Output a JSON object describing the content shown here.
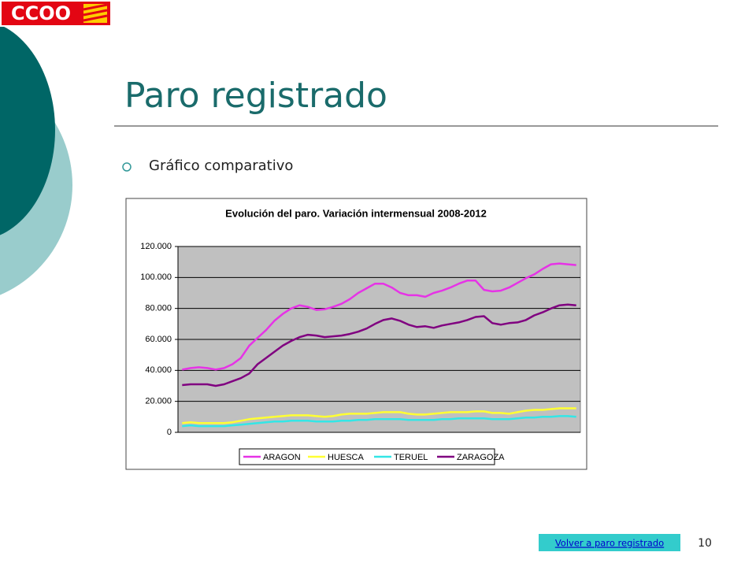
{
  "logo": {
    "text": "CCOO"
  },
  "slide": {
    "title": "Paro registrado",
    "bullet": "Gráfico comparativo",
    "link": "Volver a paro registrado",
    "page_number": "10"
  },
  "chart_data": {
    "type": "line",
    "title": "Evolución del paro. Variación intermensual 2008-2012",
    "ylim": [
      0,
      120000
    ],
    "yticks": [
      0,
      {
        "value": 20000,
        "label": "20.000"
      },
      {
        "value": 40000,
        "label": "40.000"
      },
      {
        "value": 60000,
        "label": "60.000"
      },
      {
        "value": 80000,
        "label": "80.000"
      },
      {
        "value": 100000,
        "label": "100.000"
      },
      {
        "value": 120000,
        "label": "120.000"
      }
    ],
    "grid": true,
    "legend": "bottom",
    "series": [
      {
        "name": "ARAGON",
        "color": "#e633e6",
        "values": [
          40500,
          41500,
          42000,
          41500,
          40500,
          41500,
          44000,
          48000,
          56000,
          61000,
          66000,
          72000,
          76500,
          80000,
          82000,
          81000,
          79000,
          79500,
          81000,
          83000,
          86000,
          90000,
          93000,
          96000,
          96000,
          93500,
          90000,
          88500,
          88500,
          87500,
          90000,
          91500,
          93500,
          96000,
          98000,
          98000,
          92000,
          91000,
          91500,
          93500,
          96500,
          99500,
          102000,
          105500,
          108500,
          109000,
          108500,
          108000
        ]
      },
      {
        "name": "HUESCA",
        "color": "#ffff33",
        "values": [
          6000,
          6500,
          6000,
          6000,
          6000,
          6000,
          6500,
          7500,
          8500,
          9000,
          9500,
          10000,
          10500,
          11000,
          11000,
          11000,
          10500,
          10000,
          10500,
          11500,
          12000,
          12000,
          12000,
          12500,
          13000,
          13000,
          13000,
          12000,
          11500,
          11500,
          12000,
          12500,
          13000,
          13000,
          13000,
          13500,
          13500,
          12500,
          12500,
          12000,
          13000,
          14000,
          14500,
          14500,
          15000,
          15500,
          15500,
          15500
        ]
      },
      {
        "name": "TERUEL",
        "color": "#33e6e6",
        "values": [
          4000,
          4500,
          4000,
          4000,
          4000,
          4000,
          4500,
          5000,
          5500,
          6000,
          6500,
          7000,
          7000,
          7500,
          7500,
          7500,
          7000,
          7000,
          7000,
          7500,
          7500,
          8000,
          8000,
          8500,
          8500,
          8500,
          8500,
          8000,
          8000,
          8000,
          8000,
          8500,
          8500,
          9000,
          9000,
          9000,
          9000,
          8500,
          8500,
          8500,
          9000,
          9500,
          9500,
          10000,
          10000,
          10500,
          10500,
          10000
        ]
      },
      {
        "name": "ZARAGOZA",
        "color": "#800080",
        "values": [
          30500,
          31000,
          31000,
          31000,
          30000,
          31000,
          33000,
          35000,
          38000,
          44000,
          48000,
          52000,
          56000,
          59000,
          61500,
          63000,
          62500,
          61500,
          62000,
          62500,
          63500,
          65000,
          67000,
          70000,
          72500,
          73500,
          72000,
          69500,
          68000,
          68500,
          67500,
          69000,
          70000,
          71000,
          72500,
          74500,
          75000,
          70500,
          69500,
          70500,
          71000,
          72500,
          75500,
          77500,
          80000,
          82000,
          82500,
          82000
        ]
      }
    ]
  }
}
